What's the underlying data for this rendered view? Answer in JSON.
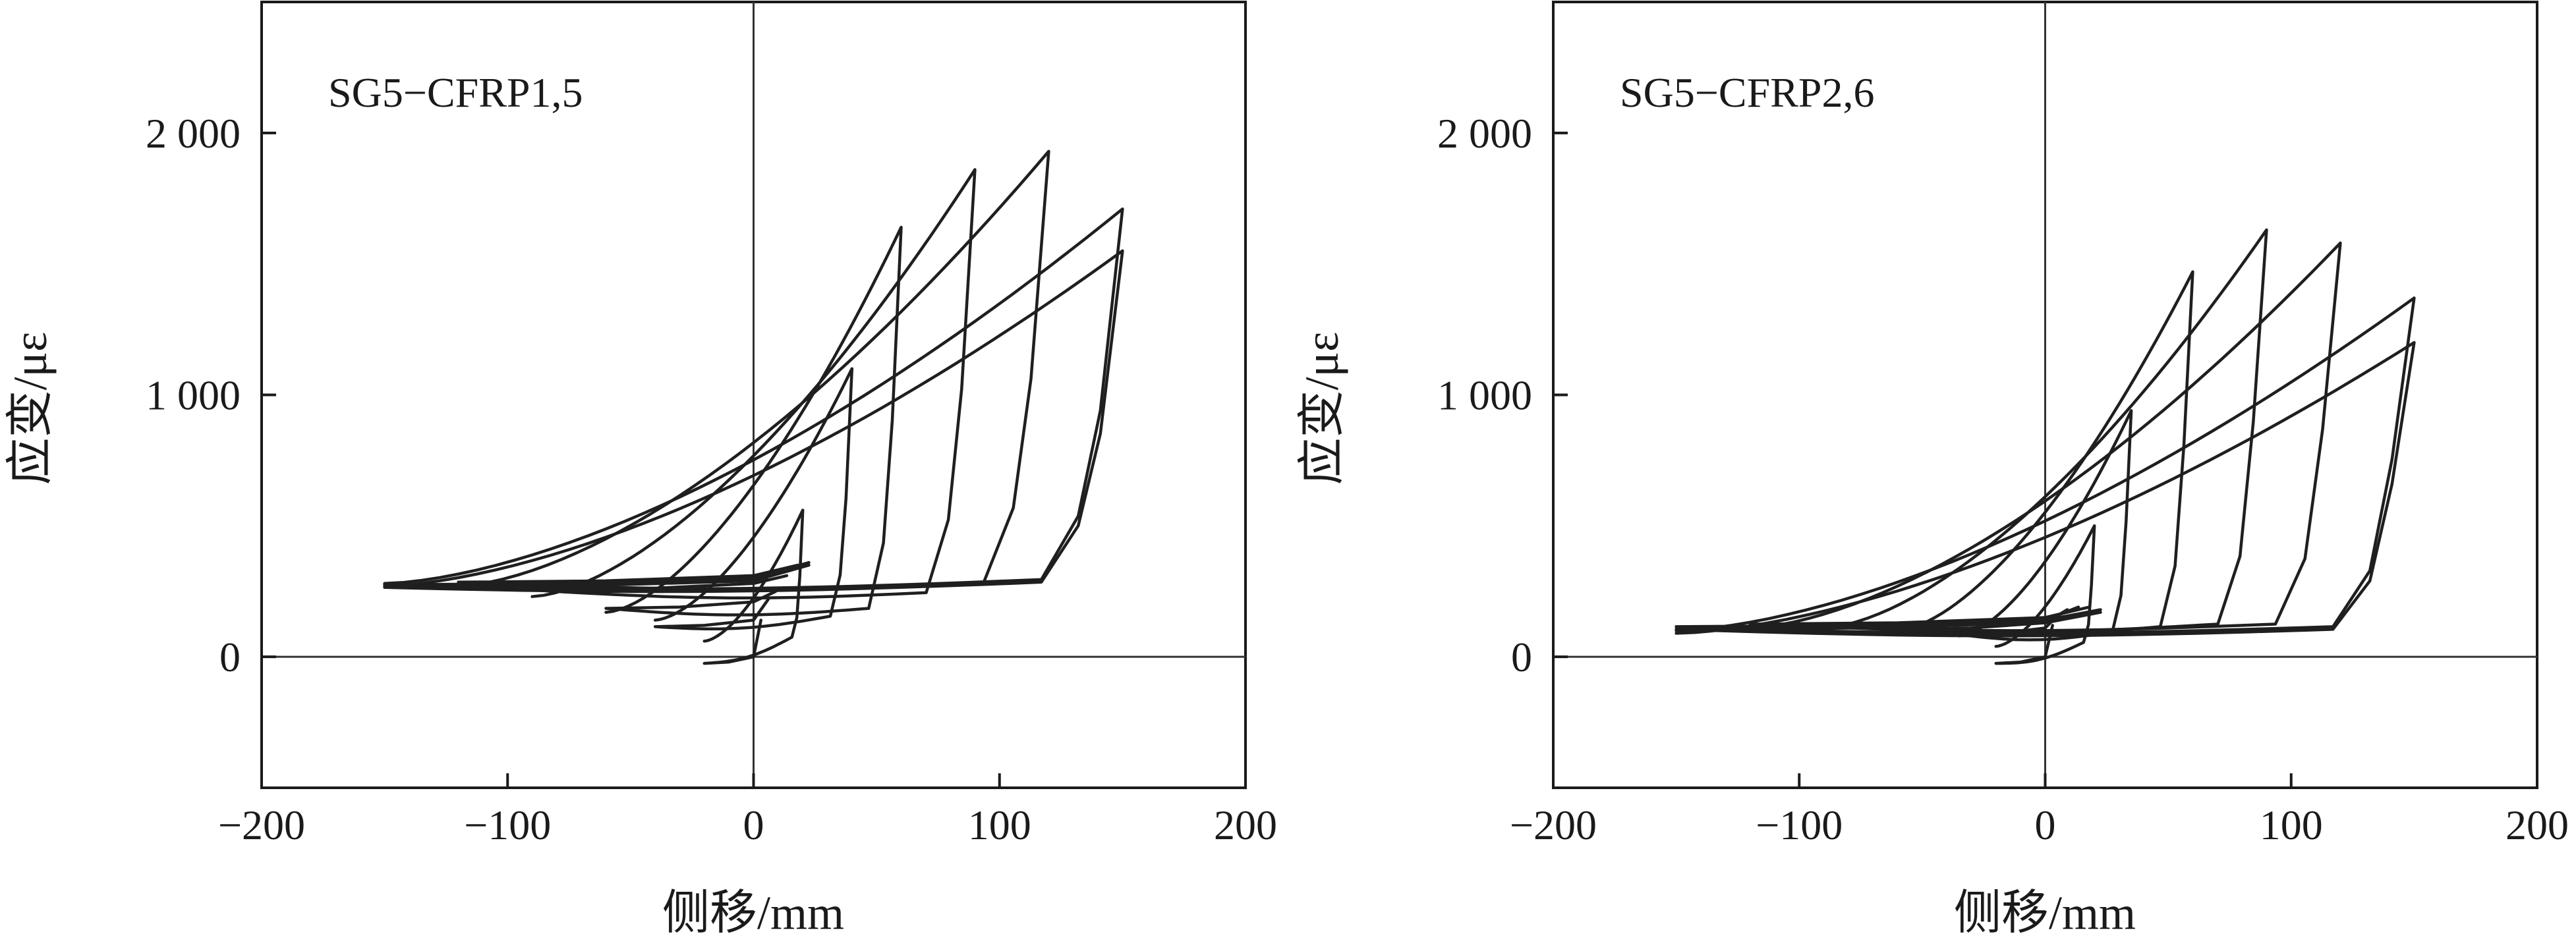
{
  "chart_data": [
    {
      "type": "line",
      "title": "SG5−CFRP1,5",
      "xlabel": "侧移/mm",
      "ylabel": "应变/με",
      "xlim": [
        -200,
        200
      ],
      "ylim": [
        -500,
        2500
      ],
      "xticks": [
        -200,
        -100,
        0,
        100,
        200
      ],
      "xtick_labels": [
        "−200",
        "−100",
        "0",
        "100",
        "200"
      ],
      "yticks": [
        0,
        1000,
        2000
      ],
      "ytick_labels": [
        "0",
        "1 000",
        "2 000"
      ],
      "grid": false,
      "series": [
        {
          "amp": 20,
          "peak": 560,
          "base": 60,
          "low": -40
        },
        {
          "amp": 40,
          "peak": 1100,
          "base": 140,
          "low": 100
        },
        {
          "amp": 60,
          "peak": 1640,
          "base": 170,
          "low": 170
        },
        {
          "amp": 90,
          "peak": 1860,
          "base": 230,
          "low": 240
        },
        {
          "amp": 120,
          "peak": 1930,
          "base": 270,
          "low": 270
        },
        {
          "amp": 150,
          "peak": 1710,
          "base": 280,
          "low": 260
        },
        {
          "amp": 150,
          "peak": 1550,
          "base": 270,
          "low": 250
        }
      ]
    },
    {
      "type": "line",
      "title": "SG5−CFRP2,6",
      "xlabel": "侧移/mm",
      "ylabel": "应变/με",
      "xlim": [
        -200,
        200
      ],
      "ylim": [
        -500,
        2500
      ],
      "xticks": [
        -200,
        -100,
        0,
        100,
        200
      ],
      "xtick_labels": [
        "−200",
        "−100",
        "0",
        "100",
        "200"
      ],
      "yticks": [
        0,
        1000,
        2000
      ],
      "ytick_labels": [
        "0",
        "1 000",
        "2 000"
      ],
      "grid": false,
      "series": [
        {
          "amp": 20,
          "peak": 500,
          "base": 40,
          "low": -40
        },
        {
          "amp": 35,
          "peak": 940,
          "base": 80,
          "low": 70
        },
        {
          "amp": 60,
          "peak": 1470,
          "base": 100,
          "low": 90
        },
        {
          "amp": 90,
          "peak": 1630,
          "base": 110,
          "low": 100
        },
        {
          "amp": 120,
          "peak": 1580,
          "base": 110,
          "low": 110
        },
        {
          "amp": 150,
          "peak": 1370,
          "base": 100,
          "low": 100
        },
        {
          "amp": 150,
          "peak": 1200,
          "base": 90,
          "low": 90
        }
      ]
    }
  ]
}
